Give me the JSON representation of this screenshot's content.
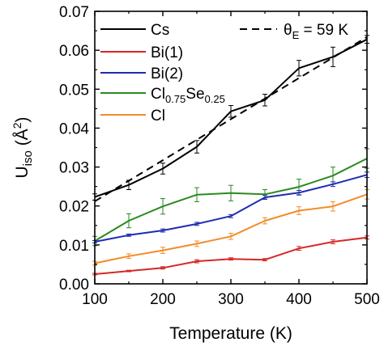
{
  "chart_data": {
    "type": "line",
    "title": "",
    "xlabel": "Temperature (K)",
    "ylabel": "U",
    "ylabel_sub": "iso",
    "ylabel_unit_main": " (Å",
    "ylabel_unit_sup": "2",
    "ylabel_unit_end": ")",
    "xlim": [
      100,
      500
    ],
    "ylim": [
      0.0,
      0.07
    ],
    "xticks": [
      100,
      200,
      300,
      400,
      500
    ],
    "xtick_labels": [
      "100",
      "200",
      "300",
      "400",
      "500"
    ],
    "yticks": [
      0.0,
      0.01,
      0.02,
      0.03,
      0.04,
      0.05,
      0.06,
      0.07
    ],
    "ytick_labels": [
      "0.00",
      "0.01",
      "0.02",
      "0.03",
      "0.04",
      "0.05",
      "0.06",
      "0.07"
    ],
    "grid": false,
    "legend_placement": "top-left",
    "x": [
      100,
      150,
      200,
      250,
      300,
      350,
      400,
      450,
      500
    ],
    "series": [
      {
        "name": "Cs",
        "color": "#000000",
        "values": [
          0.0223,
          0.0254,
          0.0296,
          0.0352,
          0.0443,
          0.0472,
          0.0554,
          0.0583,
          0.0628
        ],
        "errors": [
          0.0008,
          0.0012,
          0.0014,
          0.0016,
          0.0015,
          0.0015,
          0.002,
          0.0025,
          0.001
        ]
      },
      {
        "name": "Bi(1)",
        "color": "#d62728",
        "values": [
          0.0025,
          0.0033,
          0.0041,
          0.0058,
          0.0064,
          0.0062,
          0.0091,
          0.0108,
          0.0119
        ],
        "errors": [
          0.0002,
          0.0002,
          0.0003,
          0.0004,
          0.0003,
          0.0003,
          0.0005,
          0.0005,
          0.0004
        ]
      },
      {
        "name": "Bi(2)",
        "color": "#1f2bb4",
        "values": [
          0.0108,
          0.0125,
          0.0137,
          0.0154,
          0.0174,
          0.0222,
          0.0234,
          0.0256,
          0.028
        ],
        "errors": [
          0.0003,
          0.0003,
          0.0004,
          0.0004,
          0.0004,
          0.0005,
          0.0006,
          0.0006,
          0.0007
        ]
      },
      {
        "name": "Cl",
        "name_main": "Cl",
        "name_sub1": "0.75",
        "name_mid": "Se",
        "name_sub2": "0.25",
        "color": "#2a8a1f",
        "values": [
          0.011,
          0.0162,
          0.0199,
          0.0229,
          0.0233,
          0.023,
          0.0249,
          0.0278,
          0.0322
        ],
        "errors": [
          0.0012,
          0.0018,
          0.002,
          0.0018,
          0.002,
          0.0012,
          0.002,
          0.0022,
          0.0025
        ]
      },
      {
        "name": "Cl",
        "color": "#f28c28",
        "values": [
          0.0053,
          0.0071,
          0.0086,
          0.0103,
          0.0122,
          0.0162,
          0.0188,
          0.0199,
          0.023
        ],
        "errors": [
          0.0005,
          0.0006,
          0.0008,
          0.0007,
          0.0008,
          0.0008,
          0.001,
          0.0012,
          0.0012
        ]
      }
    ],
    "fit": {
      "label_prefix": "θ",
      "label_sub": "E",
      "label_value": " = 59 K",
      "style": "dashed",
      "color": "#000000",
      "x": [
        100,
        500
      ],
      "y": [
        0.0212,
        0.0634
      ]
    }
  }
}
